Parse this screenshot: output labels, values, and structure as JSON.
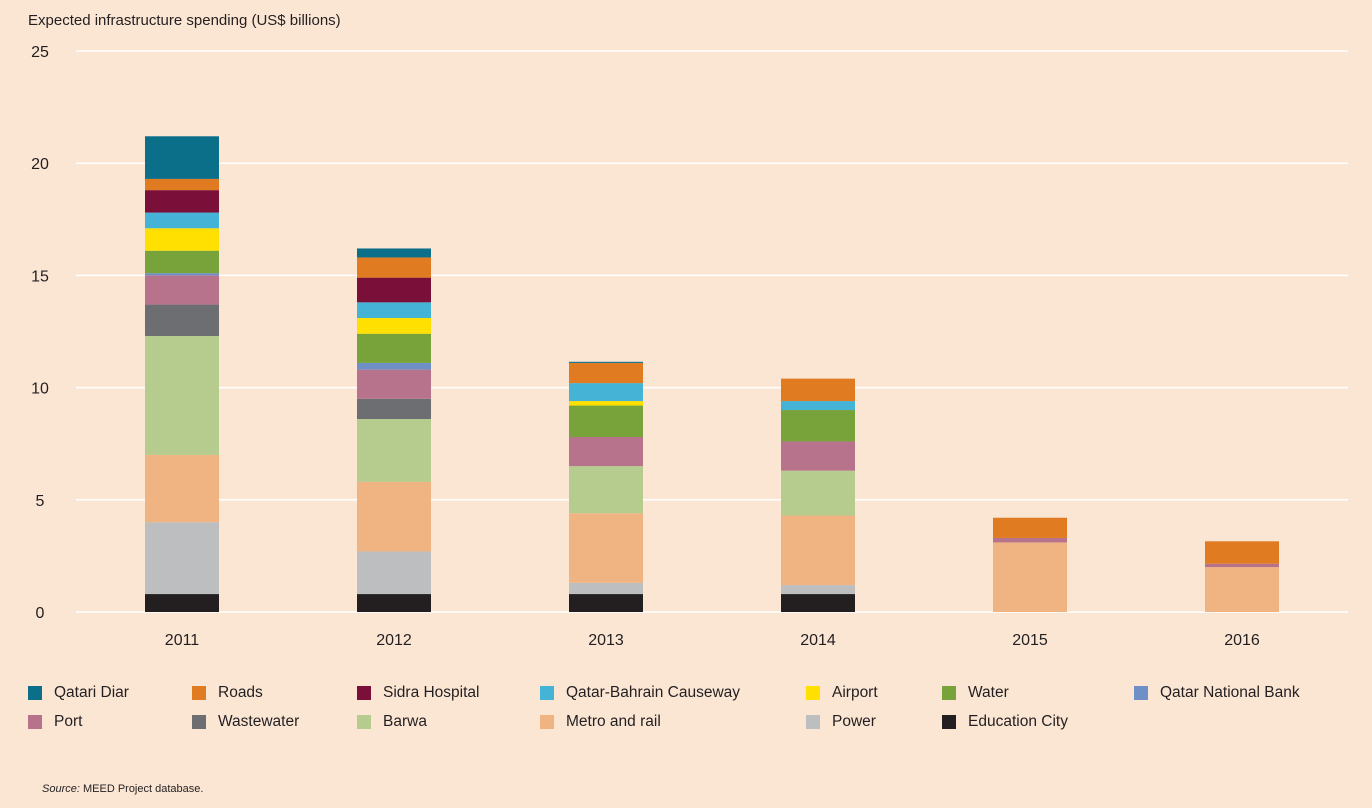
{
  "chart_data": {
    "type": "bar",
    "stacked": true,
    "title": "",
    "ylabel": "Expected infrastructure spending (US$ billions)",
    "xlabel": "",
    "ylim": [
      0,
      25
    ],
    "yticks": [
      0,
      5,
      10,
      15,
      20,
      25
    ],
    "grid": true,
    "legend_position": "bottom",
    "categories": [
      "2011",
      "2012",
      "2013",
      "2014",
      "2015",
      "2016"
    ],
    "series": [
      {
        "name": "Education City",
        "color": "#231f20",
        "values": [
          0.8,
          0.8,
          0.8,
          0.8,
          0,
          0
        ]
      },
      {
        "name": "Power",
        "color": "#bcbec0",
        "values": [
          3.2,
          1.9,
          0.5,
          0.4,
          0,
          0
        ]
      },
      {
        "name": "Metro and rail",
        "color": "#f0b483",
        "values": [
          3.0,
          3.1,
          3.1,
          3.1,
          3.1,
          2.0
        ]
      },
      {
        "name": "Barwa",
        "color": "#b5cc8e",
        "values": [
          5.3,
          2.8,
          2.1,
          2.0,
          0,
          0
        ]
      },
      {
        "name": "Wastewater",
        "color": "#6d6e71",
        "values": [
          1.4,
          0.9,
          0,
          0,
          0,
          0
        ]
      },
      {
        "name": "Port",
        "color": "#b8738c",
        "values": [
          1.3,
          1.3,
          1.3,
          1.3,
          0.2,
          0.15
        ]
      },
      {
        "name": "Qatar National Bank",
        "color": "#6f8fc7",
        "values": [
          0.1,
          0.3,
          0,
          0,
          0,
          0
        ]
      },
      {
        "name": "Water",
        "color": "#77a33a",
        "values": [
          1.0,
          1.3,
          1.4,
          1.4,
          0,
          0
        ]
      },
      {
        "name": "Airport",
        "color": "#ffe000",
        "values": [
          1.0,
          0.7,
          0.2,
          0,
          0,
          0
        ]
      },
      {
        "name": "Qatar-Bahrain Causeway",
        "color": "#45b3d6",
        "values": [
          0.7,
          0.7,
          0.8,
          0.4,
          0,
          0
        ]
      },
      {
        "name": "Sidra Hospital",
        "color": "#7a0f3a",
        "values": [
          1.0,
          1.1,
          0,
          0,
          0,
          0
        ]
      },
      {
        "name": "Roads",
        "color": "#e07b22",
        "values": [
          0.5,
          0.9,
          0.9,
          1.0,
          0.9,
          1.0
        ]
      },
      {
        "name": "Qatari Diar",
        "color": "#0b6f8a",
        "values": [
          1.9,
          0.4,
          0.05,
          0,
          0,
          0
        ]
      }
    ]
  },
  "legend": {
    "row1": [
      "Qatari Diar",
      "Roads",
      "Sidra Hospital",
      "Qatar-Bahrain Causeway",
      "Airport",
      "Water",
      "Qatar National Bank"
    ],
    "row2": [
      "Port",
      "Wastewater",
      "Barwa",
      "Metro and rail",
      "Power",
      "Education City"
    ]
  },
  "source_label": "Source:",
  "source_text": " MEED Project database."
}
